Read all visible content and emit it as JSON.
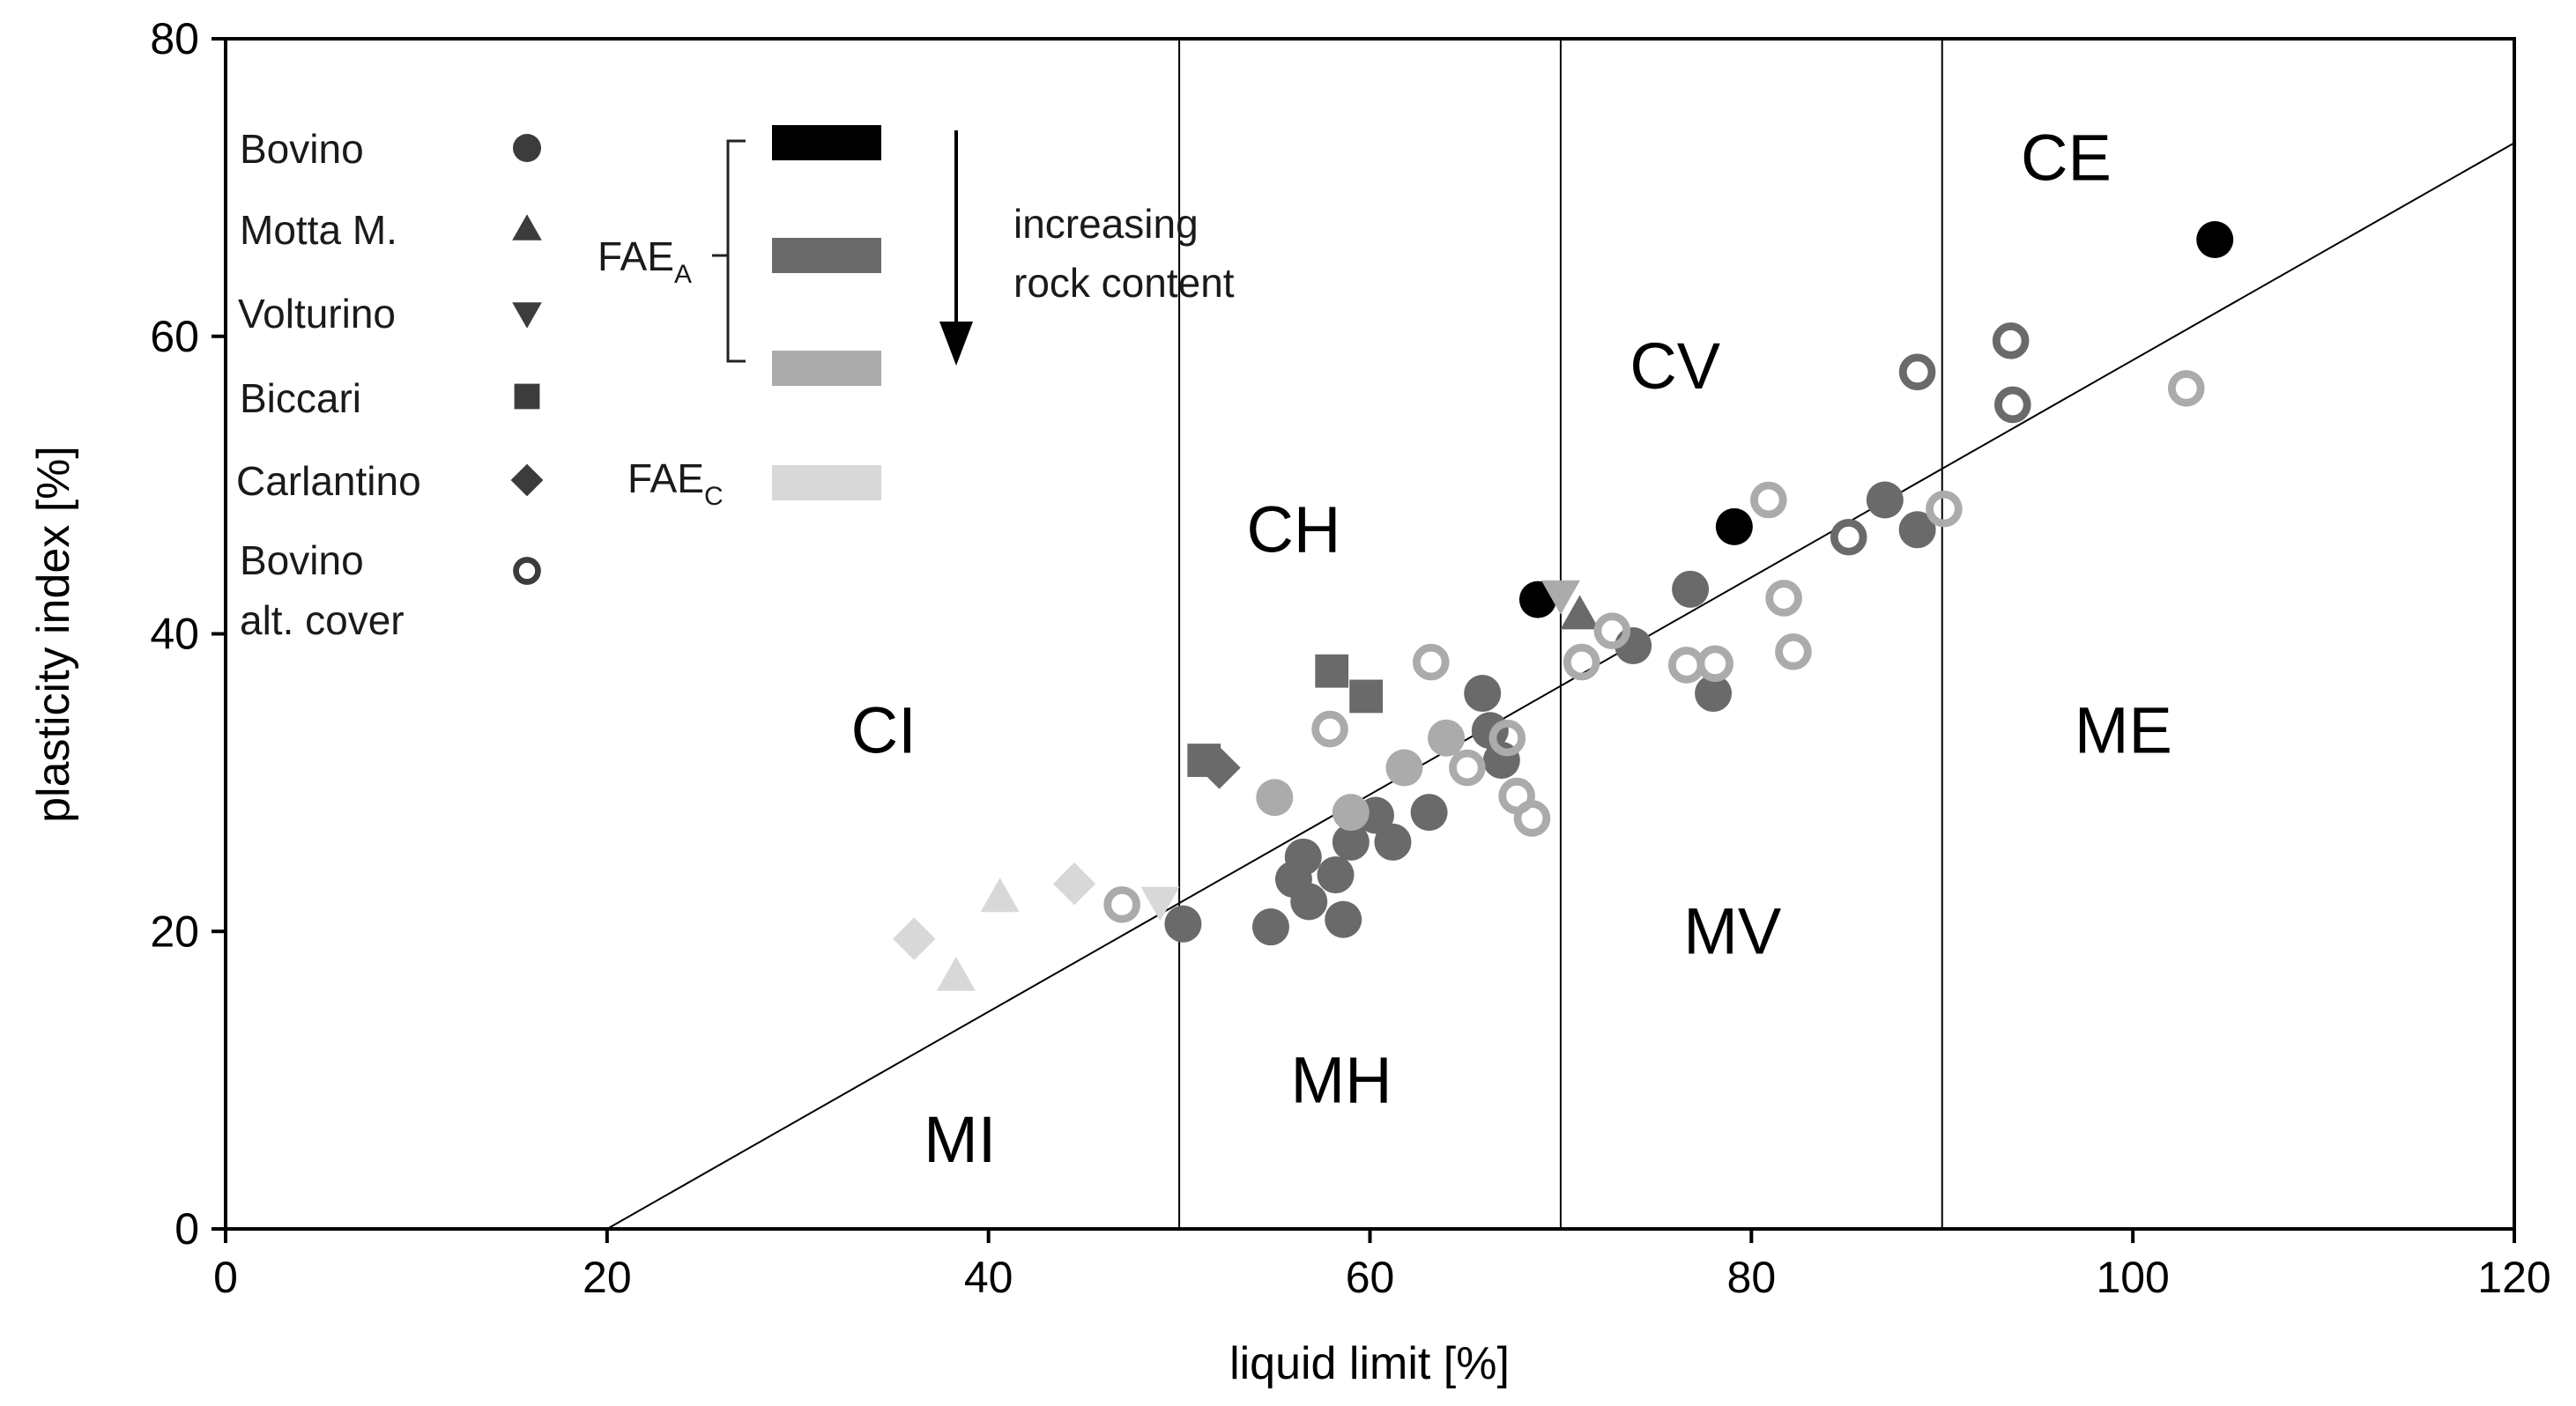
{
  "chart_data": {
    "type": "scatter",
    "title": "",
    "xlabel": "liquid limit [%]",
    "ylabel": "plasticity index [%]",
    "xlim": [
      0,
      120
    ],
    "ylim": [
      0,
      80
    ],
    "xticks": [
      0,
      20,
      40,
      60,
      80,
      100,
      120
    ],
    "yticks": [
      0,
      20,
      40,
      60,
      80
    ],
    "grid": false,
    "a_line": {
      "x": [
        20,
        120
      ],
      "y": [
        0,
        73
      ]
    },
    "vertical_lines": [
      50,
      70,
      90
    ],
    "zones": [
      {
        "label": "CI",
        "x": 34.5,
        "y": 32
      },
      {
        "label": "CH",
        "x": 56,
        "y": 45.5
      },
      {
        "label": "CV",
        "x": 76,
        "y": 56.5
      },
      {
        "label": "CE",
        "x": 96.5,
        "y": 70.5
      },
      {
        "label": "MI",
        "x": 38.5,
        "y": 4.5
      },
      {
        "label": "MH",
        "x": 58.5,
        "y": 8.5
      },
      {
        "label": "MV",
        "x": 79,
        "y": 18.5
      },
      {
        "label": "ME",
        "x": 99.5,
        "y": 32
      }
    ],
    "colors": {
      "FAE_A_high": "#000000",
      "FAE_A_mid": "#6a6a6a",
      "FAE_A_low": "#ababab",
      "FAE_C": "#d8d8d8",
      "legend_marker": "#3c3c3c"
    },
    "series": [
      {
        "name": "Bovino",
        "marker": "circle",
        "filled": true,
        "points": [
          {
            "x": 68.8,
            "y": 42.3,
            "color": "FAE_A_high"
          },
          {
            "x": 79.1,
            "y": 47.2,
            "color": "FAE_A_high"
          },
          {
            "x": 104.3,
            "y": 66.5,
            "color": "FAE_A_high"
          },
          {
            "x": 50.2,
            "y": 20.5,
            "color": "FAE_A_mid"
          },
          {
            "x": 54.8,
            "y": 20.3,
            "color": "FAE_A_mid"
          },
          {
            "x": 56.0,
            "y": 23.5,
            "color": "FAE_A_mid"
          },
          {
            "x": 56.5,
            "y": 25.0,
            "color": "FAE_A_mid"
          },
          {
            "x": 56.8,
            "y": 22.0,
            "color": "FAE_A_mid"
          },
          {
            "x": 58.2,
            "y": 23.8,
            "color": "FAE_A_mid"
          },
          {
            "x": 58.6,
            "y": 20.8,
            "color": "FAE_A_mid"
          },
          {
            "x": 59.0,
            "y": 26.0,
            "color": "FAE_A_mid"
          },
          {
            "x": 60.3,
            "y": 27.8,
            "color": "FAE_A_mid"
          },
          {
            "x": 61.2,
            "y": 26.0,
            "color": "FAE_A_mid"
          },
          {
            "x": 63.1,
            "y": 28.0,
            "color": "FAE_A_mid"
          },
          {
            "x": 65.9,
            "y": 36.0,
            "color": "FAE_A_mid"
          },
          {
            "x": 66.3,
            "y": 33.5,
            "color": "FAE_A_mid"
          },
          {
            "x": 66.9,
            "y": 31.5,
            "color": "FAE_A_mid"
          },
          {
            "x": 73.8,
            "y": 39.2,
            "color": "FAE_A_mid"
          },
          {
            "x": 76.8,
            "y": 43.0,
            "color": "FAE_A_mid"
          },
          {
            "x": 78.0,
            "y": 36.0,
            "color": "FAE_A_mid"
          },
          {
            "x": 87.0,
            "y": 49.0,
            "color": "FAE_A_mid"
          },
          {
            "x": 88.7,
            "y": 47.0,
            "color": "FAE_A_mid"
          },
          {
            "x": 55.0,
            "y": 29.0,
            "color": "FAE_A_low"
          },
          {
            "x": 59.0,
            "y": 28.0,
            "color": "FAE_A_low"
          },
          {
            "x": 61.8,
            "y": 31.0,
            "color": "FAE_A_low"
          },
          {
            "x": 64.0,
            "y": 33.0,
            "color": "FAE_A_low"
          }
        ]
      },
      {
        "name": "Motta M.",
        "marker": "triangle-up",
        "filled": true,
        "points": [
          {
            "x": 71.0,
            "y": 41.3,
            "color": "FAE_A_mid"
          },
          {
            "x": 40.6,
            "y": 22.3,
            "color": "FAE_C"
          },
          {
            "x": 38.3,
            "y": 17.0,
            "color": "FAE_C"
          }
        ]
      },
      {
        "name": "Volturino",
        "marker": "triangle-down",
        "filled": true,
        "points": [
          {
            "x": 70.0,
            "y": 42.6,
            "color": "FAE_A_low"
          },
          {
            "x": 49.0,
            "y": 22.0,
            "color": "FAE_C"
          }
        ]
      },
      {
        "name": "Biccari",
        "marker": "square",
        "filled": true,
        "points": [
          {
            "x": 58.0,
            "y": 37.5,
            "color": "FAE_A_mid"
          },
          {
            "x": 59.8,
            "y": 35.8,
            "color": "FAE_A_mid"
          },
          {
            "x": 51.3,
            "y": 31.5,
            "color": "FAE_A_mid"
          }
        ]
      },
      {
        "name": "Carlantino",
        "marker": "diamond",
        "filled": true,
        "points": [
          {
            "x": 52.1,
            "y": 31.0,
            "color": "FAE_A_mid"
          },
          {
            "x": 36.1,
            "y": 19.5,
            "color": "FAE_C"
          },
          {
            "x": 44.5,
            "y": 23.2,
            "color": "FAE_C"
          }
        ]
      },
      {
        "name": "Bovino alt. cover",
        "marker": "circle",
        "filled": false,
        "points": [
          {
            "x": 85.1,
            "y": 46.5,
            "color": "FAE_A_mid"
          },
          {
            "x": 88.7,
            "y": 57.6,
            "color": "FAE_A_mid"
          },
          {
            "x": 93.6,
            "y": 59.7,
            "color": "FAE_A_mid"
          },
          {
            "x": 93.7,
            "y": 55.4,
            "color": "FAE_A_mid"
          },
          {
            "x": 47.0,
            "y": 21.8,
            "color": "FAE_A_low"
          },
          {
            "x": 57.9,
            "y": 33.6,
            "color": "FAE_A_low"
          },
          {
            "x": 63.2,
            "y": 38.1,
            "color": "FAE_A_low"
          },
          {
            "x": 65.1,
            "y": 31.0,
            "color": "FAE_A_low"
          },
          {
            "x": 67.2,
            "y": 33.0,
            "color": "FAE_A_low"
          },
          {
            "x": 67.7,
            "y": 29.1,
            "color": "FAE_A_low"
          },
          {
            "x": 68.5,
            "y": 27.6,
            "color": "FAE_A_low"
          },
          {
            "x": 71.1,
            "y": 38.1,
            "color": "FAE_A_low"
          },
          {
            "x": 72.7,
            "y": 40.2,
            "color": "FAE_A_low"
          },
          {
            "x": 76.6,
            "y": 37.9,
            "color": "FAE_A_low"
          },
          {
            "x": 78.1,
            "y": 38.0,
            "color": "FAE_A_low"
          },
          {
            "x": 80.9,
            "y": 49.0,
            "color": "FAE_A_low"
          },
          {
            "x": 81.7,
            "y": 42.4,
            "color": "FAE_A_low"
          },
          {
            "x": 82.2,
            "y": 38.8,
            "color": "FAE_A_low"
          },
          {
            "x": 90.1,
            "y": 48.4,
            "color": "FAE_A_low"
          },
          {
            "x": 102.8,
            "y": 56.5,
            "color": "FAE_A_low"
          }
        ]
      }
    ],
    "legend": {
      "placement": "top-left",
      "symbols": [
        {
          "label": "Bovino",
          "marker": "circle",
          "filled": true
        },
        {
          "label": "Motta M.",
          "marker": "triangle-up",
          "filled": true
        },
        {
          "label": "Volturino",
          "marker": "triangle-down",
          "filled": true
        },
        {
          "label": "Biccari",
          "marker": "square",
          "filled": true
        },
        {
          "label": "Carlantino",
          "marker": "diamond",
          "filled": true
        },
        {
          "label": "Bovino",
          "label2": "alt. cover",
          "marker": "circle",
          "filled": false
        }
      ],
      "groups": [
        {
          "label": "FAE",
          "subscript": "A",
          "colors": [
            "FAE_A_high",
            "FAE_A_mid",
            "FAE_A_low"
          ]
        },
        {
          "label": "FAE",
          "subscript": "C",
          "colors": [
            "FAE_C"
          ]
        }
      ],
      "arrow_text": [
        "increasing",
        "rock content"
      ]
    }
  }
}
